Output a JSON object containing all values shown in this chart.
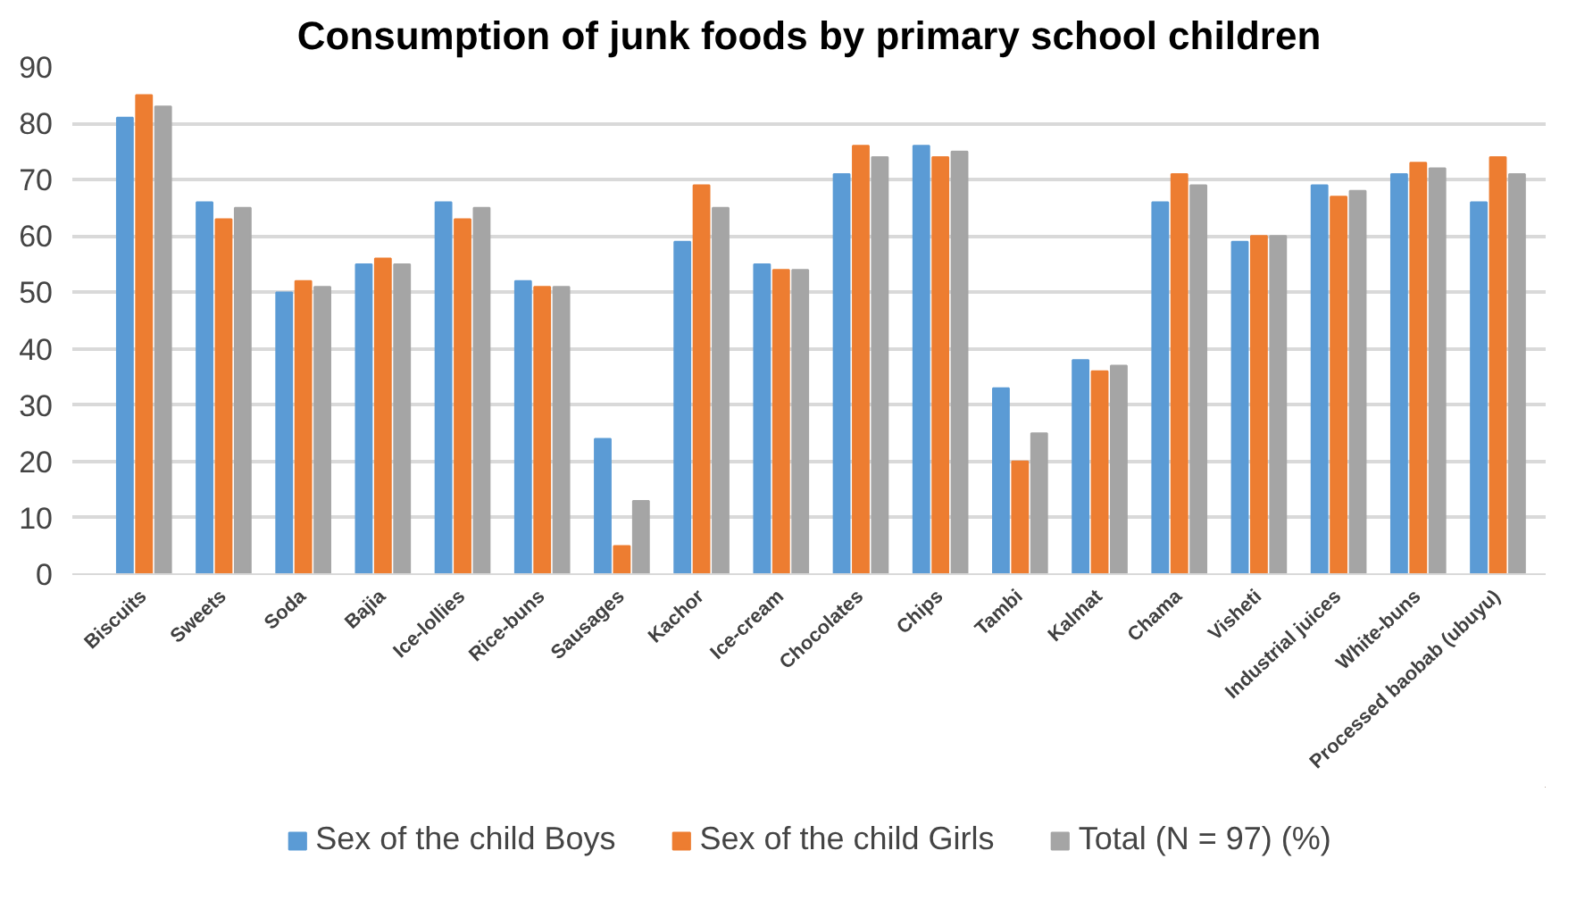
{
  "chart_data": {
    "type": "bar",
    "title": "Consumption of junk foods by primary school children",
    "categories": [
      "Biscuits",
      "Sweets",
      "Soda",
      "Bajia",
      "Ice-lollies",
      "Rice-buns",
      "Sausages",
      "Kachor",
      "Ice-cream",
      "Chocolates",
      "Chips",
      "Tambi",
      "Kalmat",
      "Chama",
      "Visheti",
      "Industrial juices",
      "White-buns",
      "Processed baobab (ubuyu)"
    ],
    "series": [
      {
        "name": "Sex of the child Boys",
        "color": "#5b9bd5",
        "values": [
          81,
          66,
          50,
          55,
          66,
          52,
          24,
          59,
          55,
          71,
          76,
          33,
          38,
          66,
          59,
          69,
          71,
          66
        ]
      },
      {
        "name": "Sex of the child Girls",
        "color": "#ed7d31",
        "values": [
          85,
          63,
          52,
          56,
          63,
          51,
          5,
          69,
          54,
          76,
          74,
          20,
          36,
          71,
          60,
          67,
          73,
          74
        ]
      },
      {
        "name": "Total (N = 97) (%)",
        "color": "#a5a5a5",
        "values": [
          83,
          65,
          51,
          55,
          65,
          51,
          13,
          65,
          54,
          74,
          75,
          25,
          37,
          69,
          60,
          68,
          72,
          71
        ]
      }
    ],
    "ylim": [
      0,
      90
    ],
    "yticks": [
      0,
      10,
      20,
      30,
      40,
      50,
      60,
      70,
      80,
      90
    ],
    "grid": "y",
    "legend": "bottom"
  }
}
